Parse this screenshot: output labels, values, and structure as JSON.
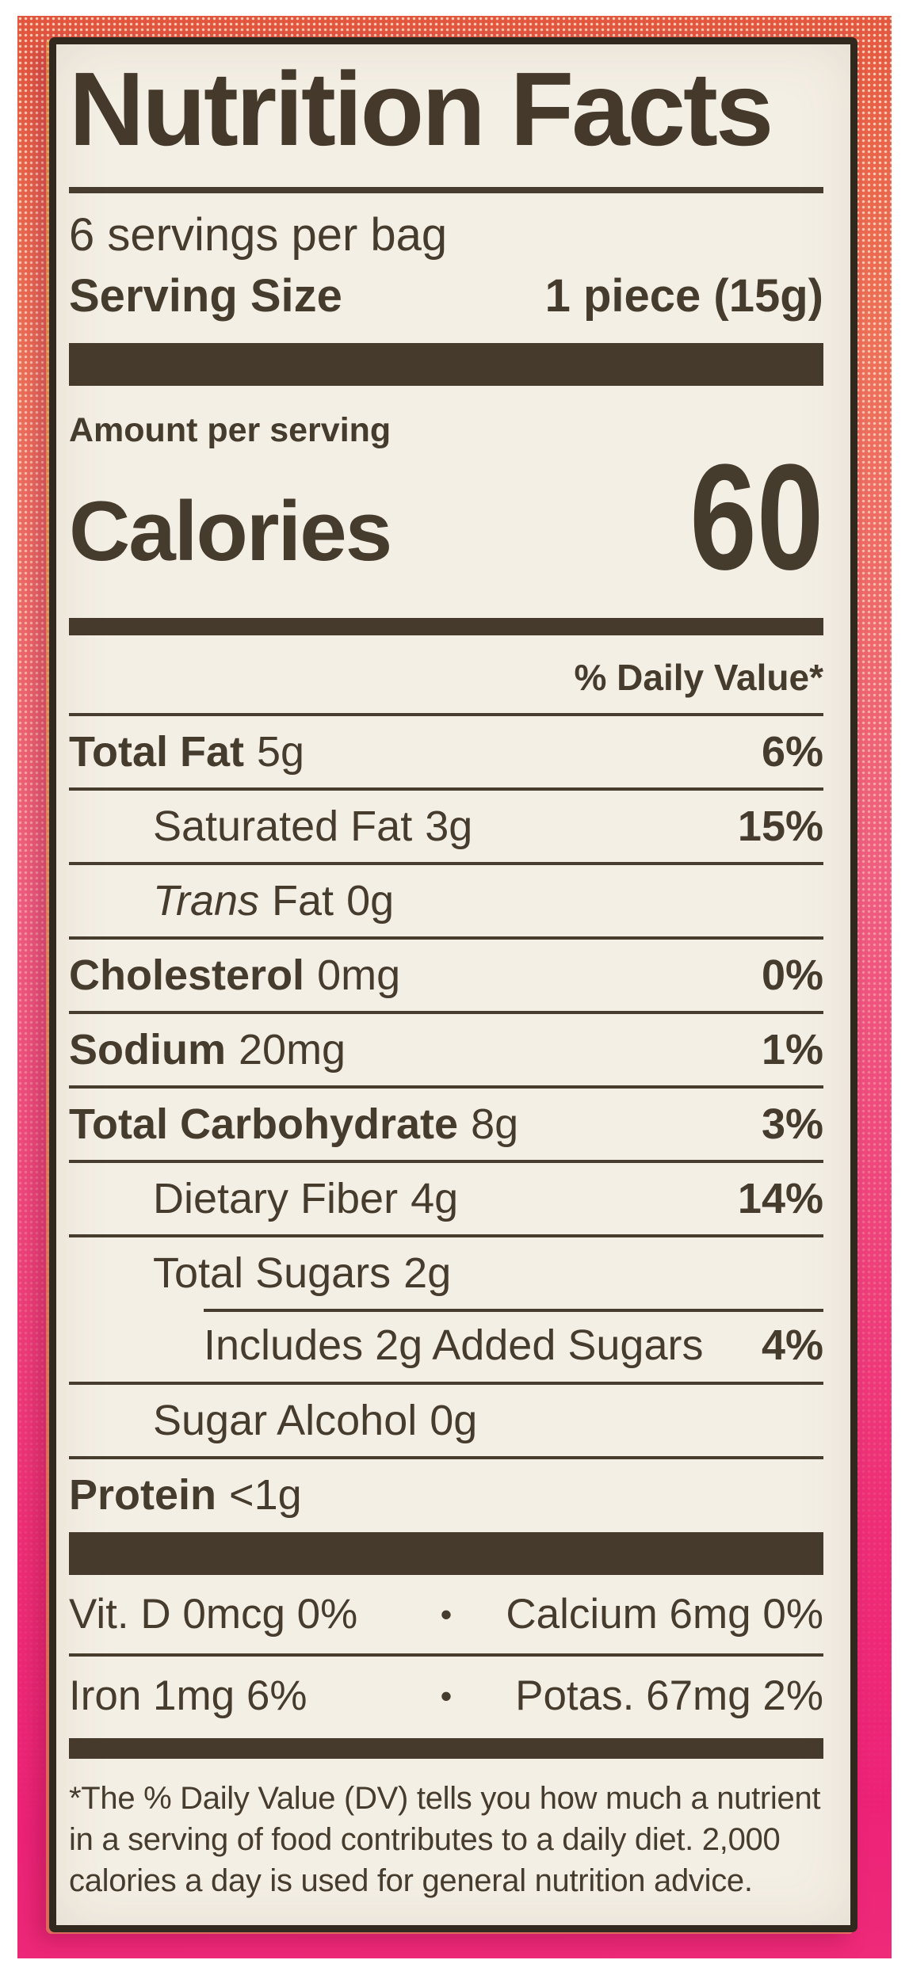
{
  "colors": {
    "ink": "#463c2e",
    "label_background": "#f4efe5",
    "package_top": "#e8593f",
    "package_middle": "#ee5f80",
    "package_bottom": "#ed2277"
  },
  "label": {
    "title": "Nutrition Facts",
    "servings_per_container": "6 servings per bag",
    "serving_size": {
      "label": "Serving Size",
      "value": "1 piece (15g)"
    },
    "amount_per_serving": "Amount per serving",
    "calories": {
      "label": "Calories",
      "value": "60"
    },
    "daily_value_header": "% Daily Value*",
    "nutrients": [
      {
        "name": "Total Fat",
        "amount": "5g",
        "dv": "6%"
      },
      {
        "name": "Saturated Fat",
        "amount": "3g",
        "dv": "15%"
      },
      {
        "name_italic": "Trans",
        "name": "Fat",
        "amount": "0g",
        "dv": ""
      },
      {
        "name": "Cholesterol",
        "amount": "0mg",
        "dv": "0%"
      },
      {
        "name": "Sodium",
        "amount": "20mg",
        "dv": "1%"
      },
      {
        "name": "Total Carbohydrate",
        "amount": "8g",
        "dv": "3%"
      },
      {
        "name": "Dietary Fiber",
        "amount": "4g",
        "dv": "14%"
      },
      {
        "name": "Total Sugars",
        "amount": "2g",
        "dv": ""
      },
      {
        "name": "Includes 2g Added Sugars",
        "amount": "",
        "dv": "4%"
      },
      {
        "name": "Sugar Alcohol",
        "amount": "0g",
        "dv": ""
      },
      {
        "name": "Protein",
        "amount": "<1g",
        "dv": ""
      }
    ],
    "micronutrients": [
      {
        "left": "Vit. D 0mcg 0%",
        "bullet": "•",
        "right": "Calcium 6mg 0%"
      },
      {
        "left": "Iron 1mg 6%",
        "bullet": "•",
        "right": "Potas. 67mg 2%"
      }
    ],
    "footnote_lines": [
      "*The % Daily Value (DV) tells you how much a nutrient",
      "in a serving of food contributes to a daily diet. 2,000",
      "calories a day is used for general nutrition advice."
    ]
  }
}
